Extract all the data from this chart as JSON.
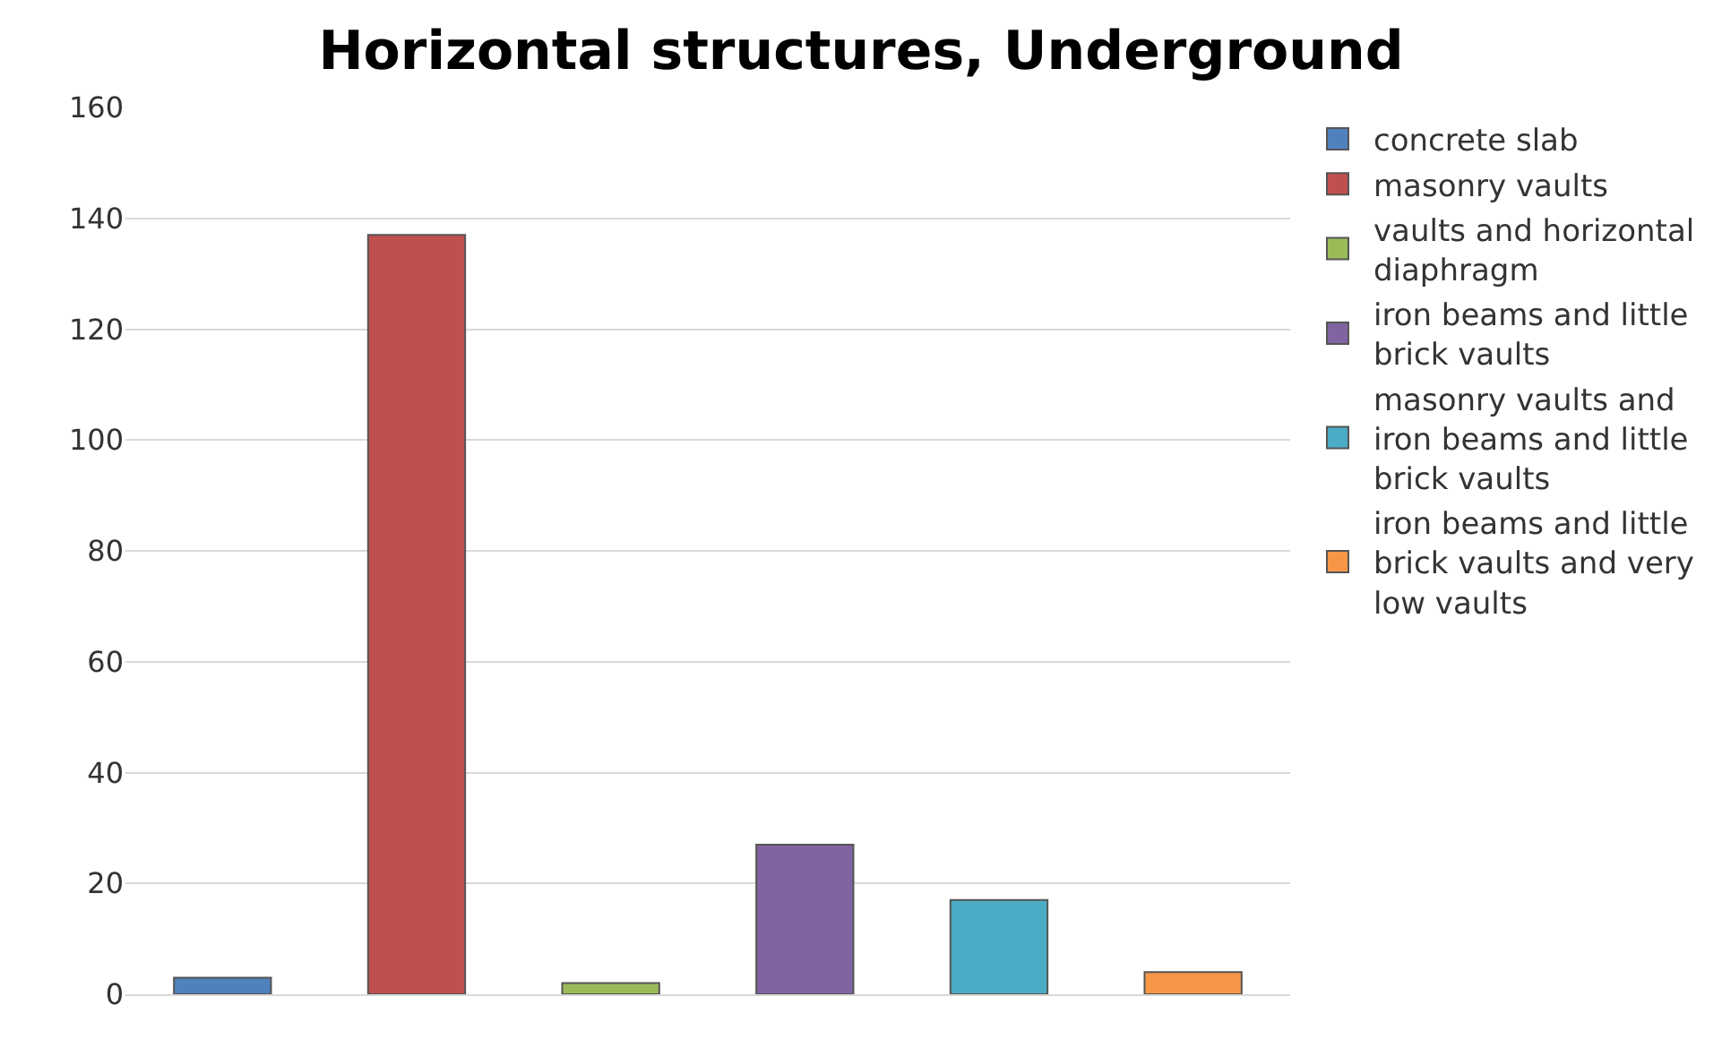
{
  "chart_data": {
    "type": "bar",
    "title": "Horizontal structures, Underground",
    "categories": [
      null,
      null,
      null,
      null,
      null,
      null
    ],
    "series": [
      {
        "name": "concrete slab",
        "color": "#4f81bd",
        "values": [
          3,
          null,
          null,
          null,
          null,
          null
        ]
      },
      {
        "name": "masonry vaults",
        "color": "#c0504d",
        "values": [
          null,
          137,
          null,
          null,
          null,
          null
        ]
      },
      {
        "name": "vaults and horizontal diaphragm",
        "color": "#9bbb59",
        "values": [
          null,
          null,
          2,
          null,
          null,
          null
        ]
      },
      {
        "name": "iron beams and little brick vaults",
        "color": "#8064a2",
        "values": [
          null,
          null,
          null,
          27,
          null,
          null
        ]
      },
      {
        "name": "masonry vaults and iron beams and little brick vaults",
        "color": "#4bacc6",
        "values": [
          null,
          null,
          null,
          null,
          17,
          null
        ]
      },
      {
        "name": "iron beams and little brick vaults and very low vaults",
        "color": "#f79646",
        "values": [
          null,
          null,
          null,
          null,
          null,
          4
        ]
      }
    ],
    "ylim": [
      0,
      160
    ],
    "yticks": [
      0,
      20,
      40,
      60,
      80,
      100,
      120,
      140,
      160
    ],
    "grid": "y",
    "legend": "right"
  }
}
